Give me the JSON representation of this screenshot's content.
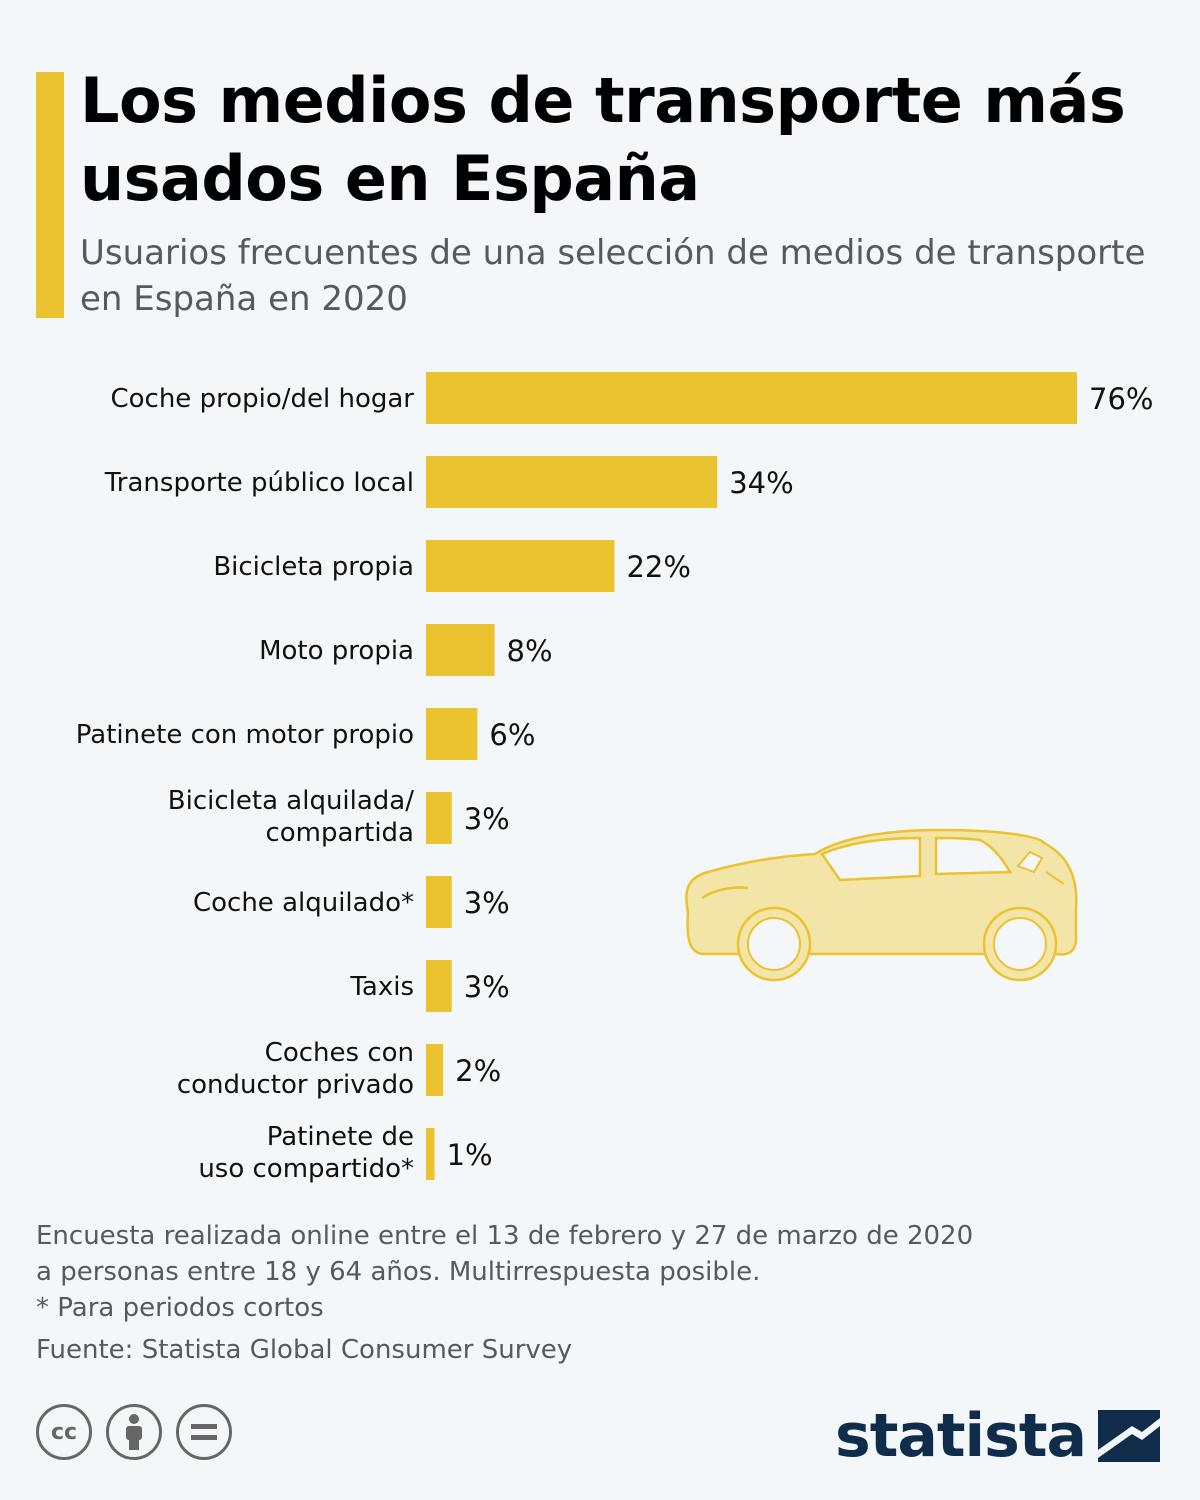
{
  "header": {
    "title": "Los medios de transporte más usados en España",
    "subtitle": "Usuarios frecuentes de una selección de medios de transporte en España en 2020"
  },
  "colors": {
    "accent": "#ebc230",
    "background": "#f4f7fa",
    "title_text": "#000000",
    "secondary_text": "#555a5f",
    "brand": "#0f2d4a"
  },
  "chart_data": {
    "type": "bar",
    "orientation": "horizontal",
    "categories": [
      [
        "Coche propio/del hogar"
      ],
      [
        "Transporte público local"
      ],
      [
        "Bicicleta propia"
      ],
      [
        "Moto propia"
      ],
      [
        "Patinete con motor propio"
      ],
      [
        "Bicicleta alquilada/",
        "compartida"
      ],
      [
        "Coche alquilado*"
      ],
      [
        "Taxis"
      ],
      [
        "Coches con",
        "conductor privado"
      ],
      [
        "Patinete de",
        "uso compartido*"
      ]
    ],
    "values": [
      76,
      34,
      22,
      8,
      6,
      3,
      3,
      3,
      2,
      1
    ],
    "value_labels": [
      "76%",
      "34%",
      "22%",
      "8%",
      "6%",
      "3%",
      "3%",
      "3%",
      "2%",
      "1%"
    ],
    "unit": "%",
    "xlim": [
      0,
      76
    ],
    "grid": false,
    "legend": "none"
  },
  "illustration": {
    "icon": "car-icon"
  },
  "footer": {
    "notes": [
      "Encuesta realizada online entre el 13 de febrero y 27 de marzo de 2020",
      "a personas entre 18 y 64 años. Multirrespuesta posible.",
      "* Para periodos cortos"
    ],
    "source": "Fuente: Statista Global Consumer Survey",
    "license_icons": [
      "cc-icon",
      "attribution-icon",
      "no-derivatives-icon"
    ],
    "cc_text": "cc",
    "brand": "statista"
  }
}
